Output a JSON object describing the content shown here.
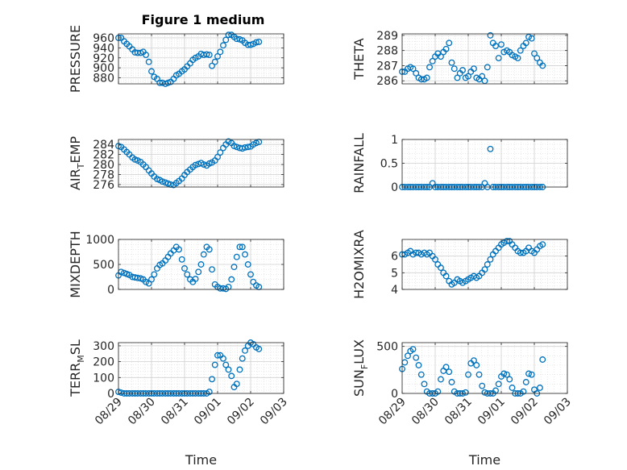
{
  "figure_title": "Figure 1 medium",
  "colors": {
    "marker": "#0072BD",
    "axis": "#262626",
    "grid": "#dcdcdc"
  },
  "chart_data": [
    {
      "type": "scatter",
      "name_key": "pressure",
      "title": "Figure 1 medium",
      "ylabel": "PRESSURE",
      "xlabel": "",
      "xlim": [
        0,
        5
      ],
      "ylim": [
        868,
        968
      ],
      "yticks": [
        880,
        900,
        920,
        940,
        960
      ],
      "xticks": [
        0,
        1,
        2,
        3,
        4,
        5
      ],
      "xticklabels": [],
      "grid": true,
      "minor_grid": true,
      "x": [
        0.0,
        0.08,
        0.17,
        0.25,
        0.33,
        0.42,
        0.5,
        0.58,
        0.67,
        0.75,
        0.83,
        0.92,
        1.0,
        1.08,
        1.17,
        1.25,
        1.33,
        1.42,
        1.5,
        1.58,
        1.67,
        1.75,
        1.83,
        1.92,
        2.0,
        2.08,
        2.17,
        2.25,
        2.33,
        2.42,
        2.5,
        2.58,
        2.67,
        2.75,
        2.83,
        2.92,
        3.0,
        3.08,
        3.17,
        3.25,
        3.33,
        3.42,
        3.5,
        3.58,
        3.67,
        3.75,
        3.83,
        3.92,
        4.0,
        4.08,
        4.17,
        4.25
      ],
      "y": [
        960,
        960,
        953,
        948,
        943,
        937,
        931,
        930,
        930,
        932,
        926,
        912,
        893,
        882,
        878,
        870,
        870,
        868,
        870,
        872,
        878,
        885,
        888,
        893,
        897,
        903,
        909,
        916,
        920,
        923,
        928,
        926,
        927,
        926,
        904,
        912,
        923,
        932,
        945,
        956,
        966,
        966,
        962,
        958,
        957,
        955,
        950,
        946,
        946,
        948,
        951,
        952
      ]
    },
    {
      "type": "scatter",
      "name_key": "theta",
      "ylabel": "THETA",
      "xlabel": "",
      "xlim": [
        0,
        5
      ],
      "ylim": [
        285.8,
        289.1
      ],
      "yticks": [
        286,
        287,
        288,
        289
      ],
      "xticks": [
        0,
        1,
        2,
        3,
        4,
        5
      ],
      "xticklabels": [],
      "grid": true,
      "minor_grid": true,
      "x": [
        0.0,
        0.08,
        0.17,
        0.25,
        0.33,
        0.42,
        0.5,
        0.58,
        0.67,
        0.75,
        0.83,
        0.92,
        1.0,
        1.08,
        1.17,
        1.25,
        1.33,
        1.42,
        1.5,
        1.58,
        1.67,
        1.75,
        1.83,
        1.92,
        2.0,
        2.08,
        2.17,
        2.25,
        2.33,
        2.42,
        2.5,
        2.58,
        2.67,
        2.75,
        2.83,
        2.92,
        3.0,
        3.08,
        3.17,
        3.25,
        3.33,
        3.42,
        3.5,
        3.58,
        3.67,
        3.75,
        3.83,
        3.92,
        4.0,
        4.08,
        4.17,
        4.25
      ],
      "y": [
        286.6,
        286.6,
        286.8,
        286.9,
        286.8,
        286.5,
        286.2,
        286.1,
        286.1,
        286.2,
        286.9,
        287.3,
        287.6,
        287.8,
        287.6,
        287.9,
        288.1,
        288.5,
        287.2,
        286.8,
        286.2,
        286.5,
        286.7,
        286.2,
        286.3,
        286.6,
        286.8,
        286.2,
        286.1,
        286.3,
        286.0,
        286.9,
        289.0,
        288.5,
        288.3,
        287.5,
        288.4,
        287.9,
        288.0,
        287.9,
        287.7,
        287.6,
        287.5,
        288.0,
        288.3,
        288.5,
        288.9,
        288.8,
        287.8,
        287.5,
        287.2,
        287.0
      ]
    },
    {
      "type": "scatter",
      "name_key": "air_temp",
      "ylabel": "AIR",
      "ylabel_sub": "T",
      "ylabel_rest": "EMP",
      "xlabel": "",
      "xlim": [
        0,
        5
      ],
      "ylim": [
        275.5,
        285.0
      ],
      "yticks": [
        276,
        278,
        280,
        282,
        284
      ],
      "xticks": [
        0,
        1,
        2,
        3,
        4,
        5
      ],
      "xticklabels": [],
      "grid": true,
      "minor_grid": true,
      "x": [
        0.0,
        0.08,
        0.17,
        0.25,
        0.33,
        0.42,
        0.5,
        0.58,
        0.67,
        0.75,
        0.83,
        0.92,
        1.0,
        1.08,
        1.17,
        1.25,
        1.33,
        1.42,
        1.5,
        1.58,
        1.67,
        1.75,
        1.83,
        1.92,
        2.0,
        2.08,
        2.17,
        2.25,
        2.33,
        2.42,
        2.5,
        2.58,
        2.67,
        2.75,
        2.83,
        2.92,
        3.0,
        3.08,
        3.17,
        3.25,
        3.33,
        3.42,
        3.5,
        3.58,
        3.67,
        3.75,
        3.83,
        3.92,
        4.0,
        4.08,
        4.17,
        4.25
      ],
      "y": [
        283.7,
        283.5,
        283.0,
        282.5,
        282.0,
        281.4,
        281.0,
        280.8,
        280.5,
        280.0,
        279.5,
        278.8,
        278.2,
        277.6,
        277.1,
        276.9,
        276.6,
        276.4,
        276.2,
        276.0,
        275.9,
        276.3,
        276.7,
        277.2,
        277.9,
        278.5,
        279.0,
        279.5,
        279.9,
        280.1,
        280.3,
        280.0,
        279.8,
        280.2,
        280.4,
        280.8,
        281.5,
        282.4,
        283.3,
        284.0,
        284.6,
        284.3,
        283.7,
        283.5,
        283.3,
        283.2,
        283.4,
        283.5,
        283.6,
        284.0,
        284.3,
        284.5
      ]
    },
    {
      "type": "scatter",
      "name_key": "rainfall",
      "ylabel": "RAINFALL",
      "xlabel": "",
      "xlim": [
        0,
        5
      ],
      "ylim": [
        0,
        1
      ],
      "yticks": [
        0,
        0.5,
        1
      ],
      "xticks": [
        0,
        1,
        2,
        3,
        4,
        5
      ],
      "xticklabels": [],
      "grid": true,
      "minor_grid": true,
      "x": [
        0.0,
        0.08,
        0.17,
        0.25,
        0.33,
        0.42,
        0.5,
        0.58,
        0.67,
        0.75,
        0.83,
        0.92,
        1.0,
        1.08,
        1.17,
        1.25,
        1.33,
        1.42,
        1.5,
        1.58,
        1.67,
        1.75,
        1.83,
        1.92,
        2.0,
        2.08,
        2.17,
        2.25,
        2.33,
        2.42,
        2.5,
        2.58,
        2.67,
        2.75,
        2.83,
        2.92,
        3.0,
        3.08,
        3.17,
        3.25,
        3.33,
        3.42,
        3.5,
        3.58,
        3.67,
        3.75,
        3.83,
        3.92,
        4.0,
        4.08,
        4.17,
        4.25
      ],
      "y": [
        0,
        0,
        0,
        0,
        0,
        0,
        0,
        0,
        0,
        0,
        0,
        0.08,
        0,
        0,
        0,
        0,
        0,
        0,
        0,
        0,
        0,
        0,
        0,
        0,
        0,
        0,
        0,
        0,
        0,
        0,
        0.08,
        0,
        0.8,
        0,
        0,
        0,
        0,
        0,
        0,
        0,
        0,
        0,
        0,
        0,
        0,
        0,
        0,
        0,
        0,
        0,
        0,
        0
      ]
    },
    {
      "type": "scatter",
      "name_key": "mixdepth",
      "ylabel": "MIXDEPTH",
      "xlabel": "",
      "xlim": [
        0,
        5
      ],
      "ylim": [
        0,
        1000
      ],
      "yticks": [
        0,
        500,
        1000
      ],
      "xticks": [
        0,
        1,
        2,
        3,
        4,
        5
      ],
      "xticklabels": [],
      "grid": true,
      "minor_grid": true,
      "x": [
        0.0,
        0.08,
        0.17,
        0.25,
        0.33,
        0.42,
        0.5,
        0.58,
        0.67,
        0.75,
        0.83,
        0.92,
        1.0,
        1.08,
        1.17,
        1.25,
        1.33,
        1.42,
        1.5,
        1.58,
        1.67,
        1.75,
        1.83,
        1.92,
        2.0,
        2.08,
        2.17,
        2.25,
        2.33,
        2.42,
        2.5,
        2.58,
        2.67,
        2.75,
        2.83,
        2.92,
        3.0,
        3.08,
        3.17,
        3.25,
        3.33,
        3.42,
        3.5,
        3.58,
        3.67,
        3.75,
        3.83,
        3.92,
        4.0,
        4.08,
        4.17,
        4.25
      ],
      "y": [
        280,
        350,
        330,
        310,
        290,
        250,
        240,
        230,
        220,
        200,
        150,
        120,
        200,
        300,
        420,
        490,
        520,
        580,
        650,
        720,
        780,
        850,
        800,
        600,
        420,
        300,
        200,
        150,
        210,
        350,
        500,
        700,
        850,
        800,
        400,
        100,
        50,
        20,
        20,
        10,
        50,
        200,
        450,
        650,
        850,
        850,
        700,
        500,
        300,
        150,
        80,
        50
      ]
    },
    {
      "type": "scatter",
      "name_key": "h2omixra",
      "ylabel": "H2OMIXRA",
      "xlabel": "",
      "xlim": [
        0,
        5
      ],
      "ylim": [
        4,
        7
      ],
      "yticks": [
        4,
        5,
        6
      ],
      "xticks": [
        0,
        1,
        2,
        3,
        4,
        5
      ],
      "xticklabels": [],
      "grid": true,
      "minor_grid": true,
      "x": [
        0.0,
        0.08,
        0.17,
        0.25,
        0.33,
        0.42,
        0.5,
        0.58,
        0.67,
        0.75,
        0.83,
        0.92,
        1.0,
        1.08,
        1.17,
        1.25,
        1.33,
        1.42,
        1.5,
        1.58,
        1.67,
        1.75,
        1.83,
        1.92,
        2.0,
        2.08,
        2.17,
        2.25,
        2.33,
        2.42,
        2.5,
        2.58,
        2.67,
        2.75,
        2.83,
        2.92,
        3.0,
        3.08,
        3.17,
        3.25,
        3.33,
        3.42,
        3.5,
        3.58,
        3.67,
        3.75,
        3.83,
        3.92,
        4.0,
        4.08,
        4.17,
        4.25
      ],
      "y": [
        6.1,
        6.1,
        6.2,
        6.3,
        6.1,
        6.2,
        6.2,
        6.1,
        6.2,
        6.1,
        6.2,
        6.0,
        5.8,
        5.5,
        5.3,
        5.0,
        4.8,
        4.5,
        4.3,
        4.4,
        4.6,
        4.5,
        4.4,
        4.5,
        4.6,
        4.7,
        4.8,
        4.7,
        4.8,
        5.0,
        5.2,
        5.5,
        5.8,
        6.1,
        6.3,
        6.5,
        6.7,
        6.8,
        6.9,
        6.9,
        6.7,
        6.5,
        6.3,
        6.2,
        6.2,
        6.3,
        6.5,
        6.3,
        6.2,
        6.4,
        6.6,
        6.7
      ]
    },
    {
      "type": "scatter",
      "name_key": "terr_msl",
      "ylabel": "TERR",
      "ylabel_sub": "M",
      "ylabel_rest": "SL",
      "xlabel": "Time",
      "xlim": [
        0,
        5
      ],
      "ylim": [
        0,
        320
      ],
      "yticks": [
        0,
        100,
        200,
        300
      ],
      "xticks": [
        0,
        1,
        2,
        3,
        4,
        5
      ],
      "xticklabels": [
        "08/29",
        "08/30",
        "08/31",
        "09/01",
        "09/02",
        "09/03"
      ],
      "grid": true,
      "minor_grid": true,
      "x": [
        0.0,
        0.08,
        0.17,
        0.25,
        0.33,
        0.42,
        0.5,
        0.58,
        0.67,
        0.75,
        0.83,
        0.92,
        1.0,
        1.08,
        1.17,
        1.25,
        1.33,
        1.42,
        1.5,
        1.58,
        1.67,
        1.75,
        1.83,
        1.92,
        2.0,
        2.08,
        2.17,
        2.25,
        2.33,
        2.42,
        2.5,
        2.58,
        2.67,
        2.75,
        2.83,
        2.92,
        3.0,
        3.08,
        3.17,
        3.25,
        3.33,
        3.42,
        3.5,
        3.58,
        3.67,
        3.75,
        3.83,
        3.92,
        4.0,
        4.08,
        4.17,
        4.25
      ],
      "y": [
        10,
        5,
        0,
        0,
        0,
        0,
        0,
        0,
        0,
        0,
        0,
        0,
        0,
        0,
        0,
        0,
        0,
        0,
        0,
        0,
        0,
        0,
        0,
        0,
        0,
        0,
        0,
        0,
        0,
        0,
        0,
        0,
        0,
        10,
        90,
        180,
        240,
        240,
        220,
        180,
        150,
        110,
        40,
        60,
        150,
        220,
        270,
        300,
        320,
        310,
        290,
        280
      ]
    },
    {
      "type": "scatter",
      "name_key": "sun_flux",
      "ylabel": "SUN",
      "ylabel_sub": "F",
      "ylabel_rest": "LUX",
      "xlabel": "Time",
      "xlim": [
        0,
        5
      ],
      "ylim": [
        0,
        540
      ],
      "yticks": [
        0,
        500
      ],
      "xticks": [
        0,
        1,
        2,
        3,
        4,
        5
      ],
      "xticklabels": [
        "08/29",
        "08/30",
        "08/31",
        "09/01",
        "09/02",
        "09/03"
      ],
      "grid": true,
      "minor_grid": true,
      "x": [
        0.0,
        0.08,
        0.17,
        0.25,
        0.33,
        0.42,
        0.5,
        0.58,
        0.67,
        0.75,
        0.83,
        0.92,
        1.0,
        1.08,
        1.17,
        1.25,
        1.33,
        1.42,
        1.5,
        1.58,
        1.67,
        1.75,
        1.83,
        1.92,
        2.0,
        2.08,
        2.17,
        2.25,
        2.33,
        2.42,
        2.5,
        2.58,
        2.67,
        2.75,
        2.83,
        2.92,
        3.0,
        3.08,
        3.17,
        3.25,
        3.33,
        3.42,
        3.5,
        3.58,
        3.67,
        3.75,
        3.83,
        3.92,
        4.0,
        4.08,
        4.17,
        4.25
      ],
      "y": [
        260,
        330,
        400,
        450,
        470,
        380,
        300,
        200,
        100,
        20,
        0,
        0,
        0,
        20,
        150,
        240,
        280,
        230,
        120,
        20,
        0,
        0,
        0,
        10,
        200,
        320,
        350,
        300,
        200,
        80,
        10,
        0,
        0,
        0,
        30,
        100,
        180,
        210,
        200,
        150,
        60,
        0,
        0,
        0,
        20,
        120,
        210,
        200,
        40,
        0,
        60,
        360
      ]
    }
  ]
}
